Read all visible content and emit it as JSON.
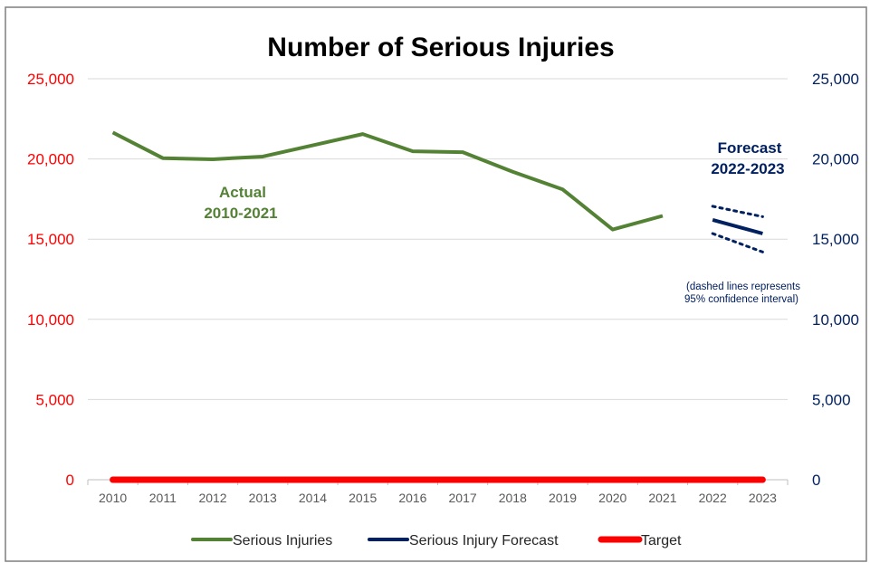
{
  "chart_data": {
    "type": "line",
    "title": "Number of Serious Injuries",
    "categories": [
      "2010",
      "2011",
      "2012",
      "2013",
      "2014",
      "2015",
      "2016",
      "2017",
      "2018",
      "2019",
      "2020",
      "2021",
      "2022",
      "2023"
    ],
    "ylim": [
      0,
      25000
    ],
    "y_ticks_left": [
      "0",
      "5,000",
      "10,000",
      "15,000",
      "20,000",
      "25,000"
    ],
    "y_ticks_right": [
      "0",
      "5,000",
      "10,000",
      "15,000",
      "20,000",
      "25,000"
    ],
    "y_tick_values": [
      0,
      5000,
      10000,
      15000,
      20000,
      25000
    ],
    "grid": true,
    "legend_position": "bottom",
    "series": [
      {
        "name": "Serious Injuries",
        "color": "#548235",
        "x": [
          "2010",
          "2011",
          "2012",
          "2013",
          "2014",
          "2015",
          "2016",
          "2017",
          "2018",
          "2019",
          "2020",
          "2021"
        ],
        "values": [
          21650,
          20050,
          19980,
          20150,
          20850,
          21550,
          20480,
          20420,
          19200,
          18100,
          15600,
          16450
        ]
      },
      {
        "name": "Serious Injury Forecast",
        "color": "#002060",
        "x": [
          "2022",
          "2023"
        ],
        "values": [
          16200,
          15350
        ],
        "ci_upper": [
          17050,
          16400
        ],
        "ci_lower": [
          15350,
          14200
        ]
      },
      {
        "name": "Target",
        "color": "#ff0000",
        "x": [
          "2010",
          "2011",
          "2012",
          "2013",
          "2014",
          "2015",
          "2016",
          "2017",
          "2018",
          "2019",
          "2020",
          "2021",
          "2022",
          "2023"
        ],
        "values": [
          0,
          0,
          0,
          0,
          0,
          0,
          0,
          0,
          0,
          0,
          0,
          0,
          0,
          0
        ]
      }
    ],
    "annotations": {
      "actual_line1": "Actual",
      "actual_line2": "2010-2021",
      "forecast_line1": "Forecast",
      "forecast_line2": "2022-2023",
      "ci_note_line1": "(dashed lines represents",
      "ci_note_line2": "95% confidence interval)"
    },
    "colors": {
      "left_axis": "#ff0000",
      "right_axis": "#002060",
      "actual_text": "#548235",
      "forecast_text": "#002060",
      "grid": "#d9d9d9"
    }
  }
}
